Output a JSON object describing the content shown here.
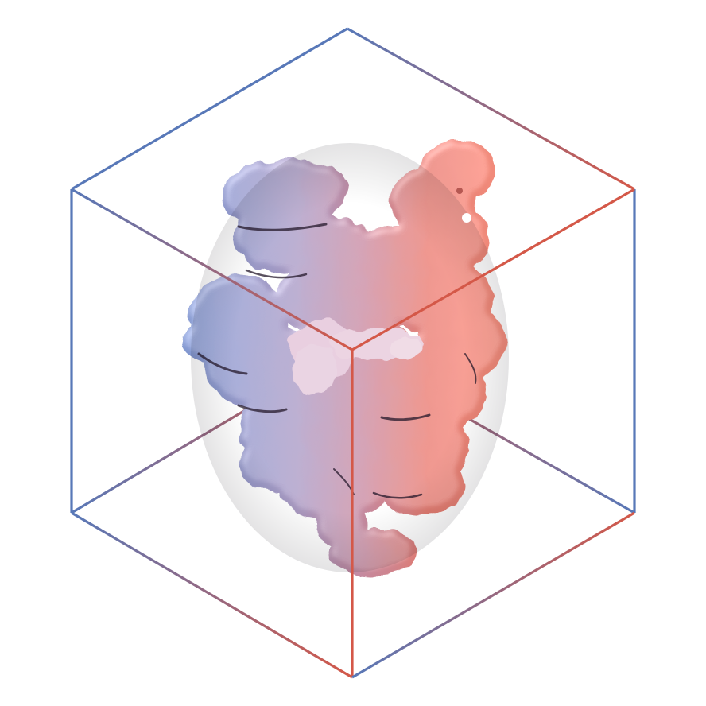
{
  "image": {
    "subject": "protein-molecular-surface-in-bounding-cube",
    "colors": {
      "blue": "#5878b8",
      "red": "#d45848",
      "surface_blue": "#6e80b8",
      "surface_mid": "#b98ea8",
      "surface_red": "#ee7e6c",
      "highlight": "#f3dfe8",
      "shadow": "#2a2030",
      "background": "#ffffff"
    }
  }
}
